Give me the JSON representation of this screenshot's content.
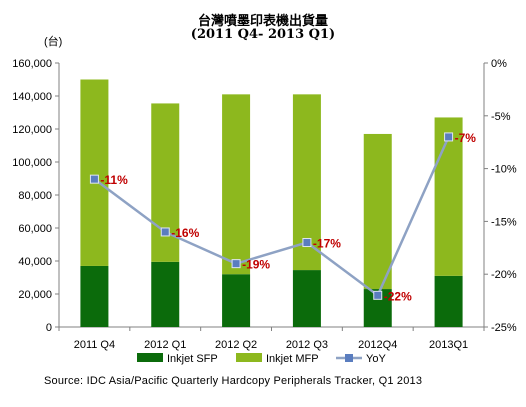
{
  "chart_data": {
    "type": "bar",
    "title": "台灣噴墨印表機出貨量",
    "subtitle": "(2011 Q4- 2013 Q1)",
    "ylabel": "(台)",
    "categories": [
      "2011 Q4",
      "2012 Q1",
      "2012 Q2",
      "2012 Q3",
      "2012Q4",
      "2013Q1"
    ],
    "stacked": true,
    "series": [
      {
        "name": "Inkjet SFP",
        "type": "bar",
        "color": "#0b6b0b",
        "values": [
          37000,
          39500,
          32000,
          34500,
          23000,
          31000
        ]
      },
      {
        "name": "Inkjet MFP",
        "type": "bar",
        "color": "#8db81e",
        "values": [
          113000,
          96000,
          109000,
          106500,
          94000,
          96000
        ]
      },
      {
        "name": "YoY",
        "type": "line",
        "axis": "right",
        "color": "#8ea2c4",
        "marker_color": "#5a7dbf",
        "values": [
          -11,
          -16,
          -19,
          -17,
          -22,
          -7
        ],
        "labels": [
          "-11%",
          "-16%",
          "-19%",
          "-17%",
          "-22%",
          "-7%"
        ]
      }
    ],
    "ylim": [
      0,
      160000
    ],
    "y_ticks": [
      "0",
      "20,000",
      "40,000",
      "60,000",
      "80,000",
      "100,000",
      "120,000",
      "140,000",
      "160,000"
    ],
    "y2lim": [
      -25,
      0
    ],
    "y2_ticks": [
      "-25%",
      "-20%",
      "-15%",
      "-10%",
      "-5%",
      "0%"
    ],
    "grid": false,
    "legend_position": "bottom",
    "label_color": "#c00000",
    "source": "Source:  IDC Asia/Pacific Quarterly Hardcopy Peripherals Tracker, Q1 2013"
  }
}
